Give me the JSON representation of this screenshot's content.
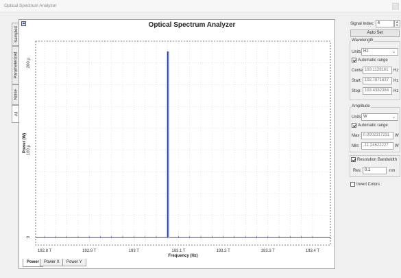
{
  "window": {
    "title": "Optical Spectrum Analyzer"
  },
  "vertical_tabs": [
    "Sampled",
    "Parameterized",
    "Noise",
    "All"
  ],
  "chart_data": {
    "type": "line",
    "title": "Optical Spectrum Analyzer",
    "xlabel": "Frequency (Hz)",
    "ylabel": "Power (W)",
    "x_ticks": [
      192.8,
      192.9,
      193.0,
      193.1,
      193.2,
      193.3,
      193.4
    ],
    "x_tick_labels": [
      "192.8 T",
      "192.9 T",
      "193 T",
      "193.1 T",
      "193.2 T",
      "193.3 T",
      "193.4 T"
    ],
    "y_ticks": [
      0,
      0.0001,
      0.0002
    ],
    "y_tick_labels": [
      "0",
      "100 µ",
      "200 µ"
    ],
    "xlim": [
      192.78,
      193.44
    ],
    "ylim": [
      -9e-06,
      0.000225
    ],
    "grid": true,
    "series": [
      {
        "color": "#2a3fa8",
        "x": [
          192.78,
          193.075,
          193.075,
          193.0765,
          193.0765,
          193.44
        ],
        "y": [
          0,
          0,
          0.000213,
          0.000213,
          0,
          0
        ]
      },
      {
        "color": "#b8c2e8",
        "x": [
          193.0765,
          193.0785,
          193.0785,
          193.0795,
          193.0795
        ],
        "y": [
          0.000213,
          0.000213,
          0,
          0,
          0
        ]
      }
    ]
  },
  "bottom_tabs": [
    "Power",
    "Power X",
    "Power Y"
  ],
  "side": {
    "signal_index_label": "Signal Index:",
    "signal_index_value": "4",
    "auto_set_label": "Auto Set",
    "wavelength": {
      "title": "Wavelength",
      "units_label": "Units:",
      "units_value": "Hz",
      "auto_range_label": "Automatic range",
      "center_label": "Center:",
      "center_value": "193.1128161",
      "center_unit": "Hz",
      "start_label": "Start:",
      "start_value": "192.7871637",
      "start_unit": "Hz",
      "stop_label": "Stop:",
      "stop_value": "193.4382384",
      "stop_unit": "Hz"
    },
    "amplitude": {
      "title": "Amplitude",
      "units_label": "Units:",
      "units_value": "W",
      "auto_range_label": "Automatic range",
      "max_label": "Max:",
      "max_value": "0.0002317231",
      "max_unit": "W",
      "min_label": "Min:",
      "min_value": "-11.24522227",
      "min_unit": "W"
    },
    "resolution": {
      "label": "Resolution Bandwidth",
      "res_label": "Res:",
      "res_value": "0.1",
      "res_unit": "nm"
    },
    "invert_colors_label": "Invert Colors"
  }
}
